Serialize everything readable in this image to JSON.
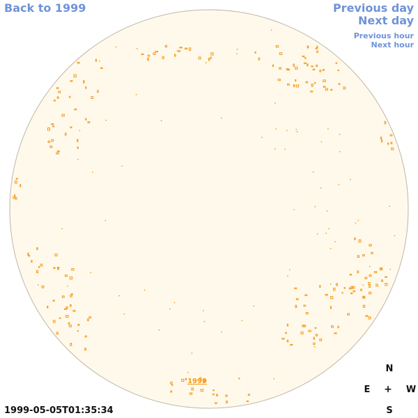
{
  "navigation": {
    "back_label": "Back to 1999",
    "previous_day_label": "Previous day",
    "next_day_label": "Next day",
    "previous_hour_label": "Previous hour",
    "next_hour_label": "Next hour"
  },
  "disc": {
    "year_label": "1999",
    "fill_color": "#fff9ec",
    "edge_color": "#bfb6a6",
    "feature_color": "#f39a1b"
  },
  "compass": {
    "north": "N",
    "east": "E",
    "center": "+",
    "west": "W",
    "south": "S"
  },
  "timestamp": "1999-05-05T01:35:34"
}
